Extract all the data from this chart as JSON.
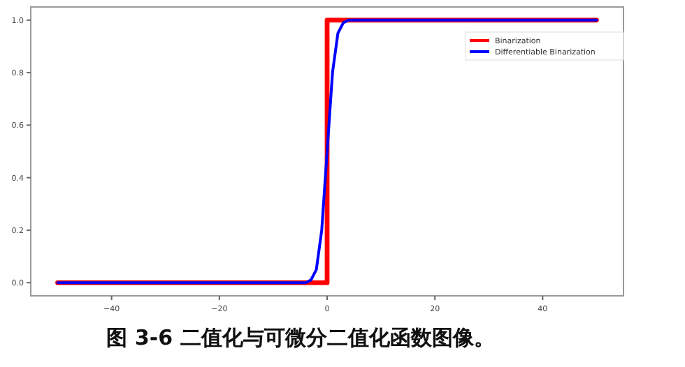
{
  "chart_data": {
    "type": "line",
    "x": [
      -50,
      0,
      0,
      50
    ],
    "series": [
      {
        "name": "Binarization",
        "color": "#ff0000",
        "values": [
          0,
          0,
          1,
          1
        ]
      },
      {
        "name": "Differentiable Binarization",
        "color": "#0000ff",
        "x": [
          -50,
          -4,
          -3,
          -2,
          -1,
          0,
          1,
          2,
          3,
          4,
          50
        ],
        "values": [
          0,
          0,
          0.01,
          0.05,
          0.2,
          0.5,
          0.8,
          0.95,
          0.99,
          1,
          1
        ]
      }
    ],
    "xlim": [
      -55,
      55
    ],
    "xticks": [
      {
        "value": -40,
        "label": "−40"
      },
      {
        "value": -20,
        "label": "−20"
      },
      0,
      20,
      40
    ],
    "ylim": [
      -0.05,
      1.05
    ],
    "yticks": [
      {
        "value": 0,
        "label": "0.0"
      },
      {
        "value": 0.2,
        "label": "0.2"
      },
      {
        "value": 0.4,
        "label": "0.4"
      },
      {
        "value": 0.6,
        "label": "0.6"
      },
      {
        "value": 0.8,
        "label": "0.8"
      },
      {
        "value": 1,
        "label": "1.0"
      }
    ],
    "grid": false,
    "legend": "top right",
    "marker": "none",
    "line_style": "solid",
    "annotations": [
      "图 3-6  二值化与可微分二值化函数图像。"
    ]
  }
}
